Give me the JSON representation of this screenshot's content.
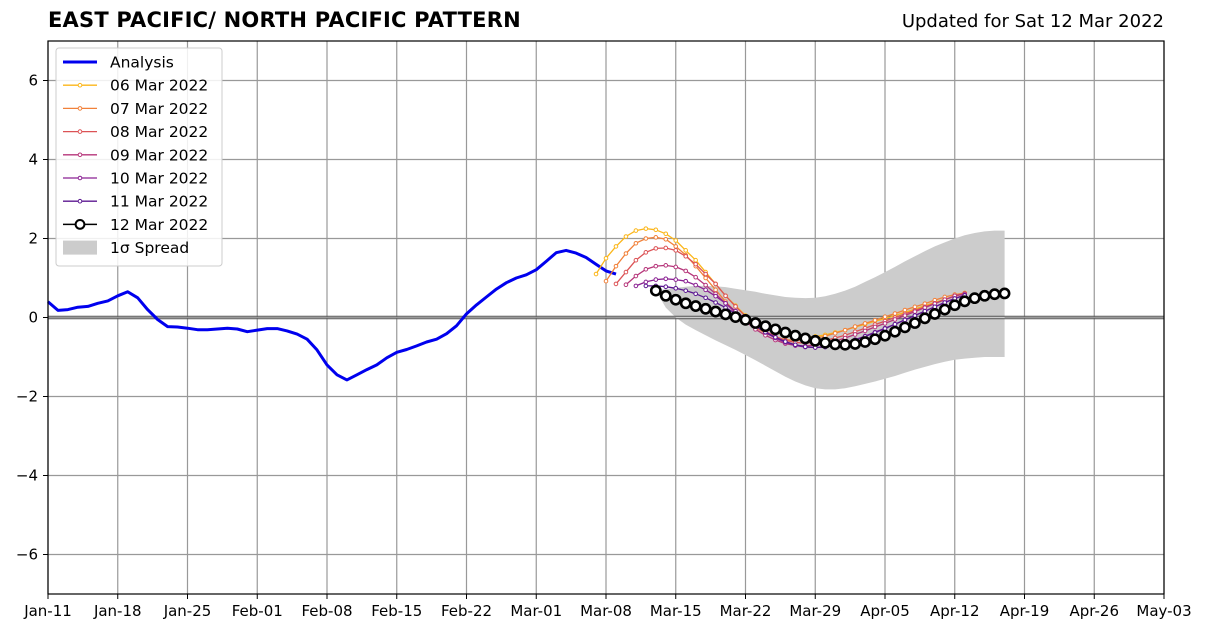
{
  "header": {
    "title": "EAST PACIFIC/ NORTH PACIFIC PATTERN",
    "updated": "Updated for Sat 12 Mar 2022"
  },
  "chart_data": {
    "type": "line",
    "title": "EAST PACIFIC/ NORTH PACIFIC PATTERN",
    "xlabel": "",
    "ylabel": "",
    "x_range_days": [
      0,
      112
    ],
    "x_start_label": "Jan-11",
    "ylim": [
      -7,
      7
    ],
    "y_ticks": [
      -6,
      -4,
      -2,
      0,
      2,
      4,
      6
    ],
    "y_tick_labels": [
      "−6",
      "−4",
      "−2",
      "0",
      "2",
      "4",
      "6"
    ],
    "x_ticks": [
      {
        "day": 0,
        "label": "Jan-11"
      },
      {
        "day": 7,
        "label": "Jan-18"
      },
      {
        "day": 14,
        "label": "Jan-25"
      },
      {
        "day": 21,
        "label": "Feb-01"
      },
      {
        "day": 28,
        "label": "Feb-08"
      },
      {
        "day": 35,
        "label": "Feb-15"
      },
      {
        "day": 42,
        "label": "Feb-22"
      },
      {
        "day": 49,
        "label": "Mar-01"
      },
      {
        "day": 56,
        "label": "Mar-08"
      },
      {
        "day": 63,
        "label": "Mar-15"
      },
      {
        "day": 70,
        "label": "Mar-22"
      },
      {
        "day": 77,
        "label": "Mar-29"
      },
      {
        "day": 84,
        "label": "Apr-05"
      },
      {
        "day": 91,
        "label": "Apr-12"
      },
      {
        "day": 98,
        "label": "Apr-19"
      },
      {
        "day": 105,
        "label": "Apr-26"
      },
      {
        "day": 112,
        "label": "May-03"
      }
    ],
    "grid": true,
    "legend_position": "top-left",
    "legend": [
      "Analysis",
      "06 Mar 2022",
      "07 Mar 2022",
      "08 Mar 2022",
      "09 Mar 2022",
      "10 Mar 2022",
      "11 Mar 2022",
      "12 Mar 2022",
      "1σ Spread"
    ],
    "analysis": {
      "name": "Analysis",
      "color": "#0000ee",
      "start_day": 0,
      "values": [
        0.4,
        0.18,
        0.2,
        0.26,
        0.28,
        0.36,
        0.42,
        0.55,
        0.65,
        0.5,
        0.2,
        -0.05,
        -0.23,
        -0.24,
        -0.27,
        -0.31,
        -0.31,
        -0.29,
        -0.27,
        -0.29,
        -0.36,
        -0.32,
        -0.28,
        -0.28,
        -0.34,
        -0.42,
        -0.55,
        -0.82,
        -1.2,
        -1.45,
        -1.58,
        -1.45,
        -1.32,
        -1.2,
        -1.02,
        -0.88,
        -0.81,
        -0.72,
        -0.62,
        -0.55,
        -0.41,
        -0.21,
        0.09,
        0.32,
        0.52,
        0.72,
        0.88,
        1.0,
        1.08,
        1.21,
        1.42,
        1.64,
        1.7,
        1.63,
        1.52,
        1.35,
        1.18,
        1.1
      ]
    },
    "forecasts": [
      {
        "name": "06 Mar 2022",
        "color": "#fbb61a",
        "start_day": 55,
        "values": [
          1.1,
          1.5,
          1.8,
          2.05,
          2.2,
          2.25,
          2.22,
          2.12,
          1.95,
          1.7,
          1.45,
          1.15,
          0.85,
          0.55,
          0.3,
          0.05,
          -0.15,
          -0.28,
          -0.38,
          -0.45,
          -0.49,
          -0.5,
          -0.48,
          -0.44,
          -0.38,
          -0.32,
          -0.24,
          -0.17,
          -0.09,
          -0.03,
          0.05,
          0.13,
          0.21,
          0.3,
          0.38,
          0.46,
          0.54,
          0.62
        ]
      },
      {
        "name": "07 Mar 2022",
        "color": "#f1813a",
        "start_day": 56,
        "values": [
          0.92,
          1.3,
          1.62,
          1.88,
          2.0,
          2.03,
          1.98,
          1.8,
          1.58,
          1.3,
          1.0,
          0.7,
          0.4,
          0.15,
          -0.07,
          -0.25,
          -0.4,
          -0.5,
          -0.56,
          -0.58,
          -0.57,
          -0.53,
          -0.47,
          -0.4,
          -0.32,
          -0.23,
          -0.15,
          -0.07,
          0.02,
          0.1,
          0.19,
          0.27,
          0.35,
          0.44,
          0.52,
          0.58,
          0.62
        ]
      },
      {
        "name": "08 Mar 2022",
        "color": "#dc5356",
        "start_day": 57,
        "values": [
          0.85,
          1.15,
          1.45,
          1.65,
          1.75,
          1.76,
          1.7,
          1.55,
          1.35,
          1.1,
          0.85,
          0.55,
          0.28,
          0.03,
          -0.18,
          -0.35,
          -0.48,
          -0.58,
          -0.63,
          -0.65,
          -0.63,
          -0.58,
          -0.52,
          -0.45,
          -0.36,
          -0.27,
          -0.18,
          -0.09,
          0.0,
          0.09,
          0.18,
          0.27,
          0.36,
          0.45,
          0.54,
          0.6
        ]
      },
      {
        "name": "09 Mar 2022",
        "color": "#b6357a",
        "start_day": 58,
        "values": [
          0.83,
          1.05,
          1.22,
          1.3,
          1.32,
          1.28,
          1.18,
          1.02,
          0.82,
          0.6,
          0.36,
          0.12,
          -0.1,
          -0.3,
          -0.45,
          -0.57,
          -0.66,
          -0.71,
          -0.72,
          -0.7,
          -0.66,
          -0.6,
          -0.52,
          -0.43,
          -0.34,
          -0.24,
          -0.15,
          -0.05,
          0.05,
          0.15,
          0.25,
          0.35,
          0.45,
          0.55,
          0.6
        ]
      },
      {
        "name": "10 Mar 2022",
        "color": "#8a2193",
        "start_day": 59,
        "values": [
          0.8,
          0.9,
          0.96,
          0.98,
          0.96,
          0.92,
          0.82,
          0.7,
          0.54,
          0.36,
          0.16,
          -0.03,
          -0.22,
          -0.38,
          -0.52,
          -0.63,
          -0.71,
          -0.75,
          -0.76,
          -0.74,
          -0.7,
          -0.64,
          -0.56,
          -0.47,
          -0.37,
          -0.27,
          -0.17,
          -0.06,
          0.05,
          0.16,
          0.27,
          0.38,
          0.48,
          0.57
        ]
      },
      {
        "name": "11 Mar 2022",
        "color": "#5b1791",
        "start_day": 60,
        "values": [
          0.8,
          0.8,
          0.78,
          0.74,
          0.68,
          0.6,
          0.5,
          0.38,
          0.25,
          0.1,
          -0.06,
          -0.22,
          -0.37,
          -0.5,
          -0.61,
          -0.69,
          -0.74,
          -0.76,
          -0.75,
          -0.71,
          -0.65,
          -0.57,
          -0.48,
          -0.38,
          -0.28,
          -0.17,
          -0.06,
          0.05,
          0.16,
          0.27,
          0.38,
          0.48,
          0.56
        ]
      },
      {
        "name": "12 Mar 2022",
        "color": "#000000",
        "start_day": 61,
        "values": [
          0.68,
          0.55,
          0.45,
          0.36,
          0.29,
          0.22,
          0.15,
          0.08,
          0.01,
          -0.06,
          -0.14,
          -0.22,
          -0.3,
          -0.38,
          -0.46,
          -0.53,
          -0.59,
          -0.64,
          -0.68,
          -0.69,
          -0.67,
          -0.62,
          -0.55,
          -0.46,
          -0.36,
          -0.25,
          -0.14,
          -0.02,
          0.09,
          0.2,
          0.31,
          0.41,
          0.49,
          0.55,
          0.59,
          0.61
        ]
      }
    ],
    "spread": {
      "name": "1σ Spread",
      "color": "#cccccc",
      "start_day": 61,
      "upper": [
        0.68,
        0.72,
        0.75,
        0.78,
        0.8,
        0.8,
        0.79,
        0.77,
        0.73,
        0.69,
        0.65,
        0.6,
        0.56,
        0.52,
        0.5,
        0.49,
        0.5,
        0.54,
        0.6,
        0.68,
        0.78,
        0.9,
        1.02,
        1.15,
        1.28,
        1.42,
        1.55,
        1.68,
        1.8,
        1.9,
        2.0,
        2.08,
        2.14,
        2.18,
        2.2,
        2.2
      ],
      "lower": [
        0.68,
        0.25,
        0.0,
        -0.18,
        -0.32,
        -0.45,
        -0.58,
        -0.7,
        -0.82,
        -0.95,
        -1.08,
        -1.22,
        -1.36,
        -1.5,
        -1.62,
        -1.72,
        -1.79,
        -1.82,
        -1.82,
        -1.79,
        -1.74,
        -1.68,
        -1.62,
        -1.55,
        -1.48,
        -1.4,
        -1.32,
        -1.25,
        -1.18,
        -1.12,
        -1.07,
        -1.04,
        -1.02,
        -1.0,
        -1.0,
        -1.0
      ]
    }
  }
}
